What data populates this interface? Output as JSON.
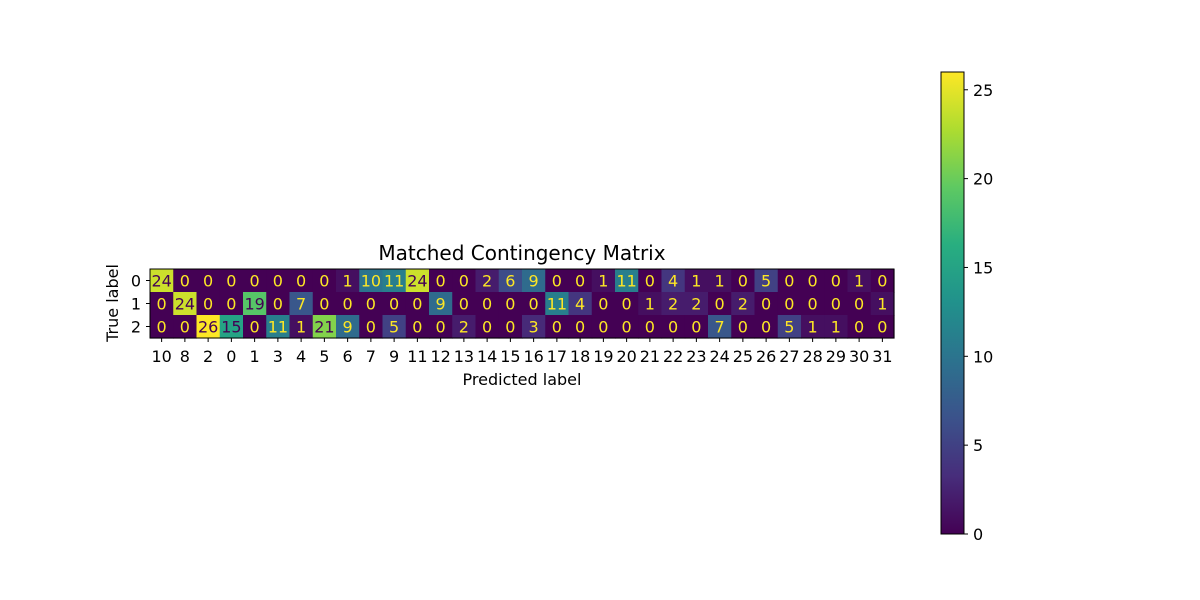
{
  "chart_data": {
    "type": "heatmap",
    "title": "Matched Contingency Matrix",
    "xlabel": "Predicted label",
    "ylabel": "True label",
    "x_categories": [
      "10",
      "8",
      "2",
      "0",
      "1",
      "3",
      "4",
      "5",
      "6",
      "7",
      "9",
      "11",
      "12",
      "13",
      "14",
      "15",
      "16",
      "17",
      "18",
      "19",
      "20",
      "21",
      "22",
      "23",
      "24",
      "25",
      "26",
      "27",
      "28",
      "29",
      "30",
      "31"
    ],
    "y_categories": [
      "0",
      "1",
      "2"
    ],
    "values": [
      [
        24,
        0,
        0,
        0,
        0,
        0,
        0,
        0,
        1,
        10,
        11,
        24,
        0,
        0,
        2,
        6,
        9,
        0,
        0,
        1,
        11,
        0,
        4,
        1,
        1,
        0,
        5,
        0,
        0,
        0,
        1,
        0
      ],
      [
        0,
        24,
        0,
        0,
        19,
        0,
        7,
        0,
        0,
        0,
        0,
        0,
        9,
        0,
        0,
        0,
        0,
        11,
        4,
        0,
        0,
        1,
        2,
        2,
        0,
        2,
        0,
        0,
        0,
        0,
        0,
        1
      ],
      [
        0,
        0,
        26,
        15,
        0,
        11,
        1,
        21,
        9,
        0,
        5,
        0,
        0,
        2,
        0,
        0,
        3,
        0,
        0,
        0,
        0,
        0,
        0,
        0,
        7,
        0,
        0,
        5,
        1,
        1,
        0,
        0
      ]
    ],
    "colormap": "viridis",
    "colorbar": {
      "range": [
        0,
        26
      ],
      "ticks": [
        0,
        5,
        10,
        15,
        20,
        25
      ]
    },
    "text_colors": {
      "low": "#fde725",
      "high": "#440154"
    }
  }
}
